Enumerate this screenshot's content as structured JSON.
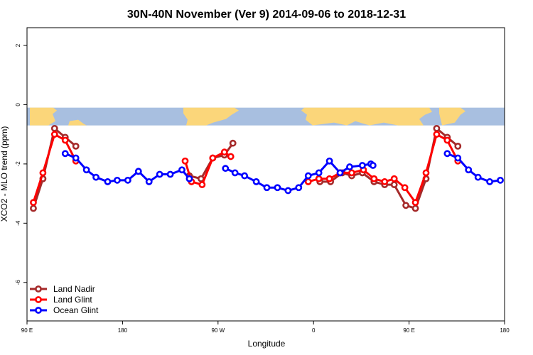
{
  "chart_data": {
    "type": "line",
    "title": "30N-40N November (Ver 9)   2014-09-06 to 2018-12-31",
    "xlabel": "Longitude",
    "ylabel": "XCO2 - MLO trend (ppm)",
    "xlim": [
      90,
      540
    ],
    "ylim": [
      -7.3,
      2.6
    ],
    "x_ticks": [
      {
        "value": 90,
        "label": "90 E"
      },
      {
        "value": 180,
        "label": "180"
      },
      {
        "value": 270,
        "label": "90 W"
      },
      {
        "value": 360,
        "label": "0"
      },
      {
        "value": 450,
        "label": "90 E"
      },
      {
        "value": 540,
        "label": "180"
      }
    ],
    "y_ticks": [
      {
        "value": 2,
        "label": "2"
      },
      {
        "value": 0,
        "label": "0"
      },
      {
        "value": -2,
        "label": "-2"
      },
      {
        "value": -4,
        "label": "-4"
      },
      {
        "value": -6,
        "label": "-6"
      }
    ],
    "map_strip": {
      "y_top": -0.1,
      "y_bottom": -0.7,
      "ocean_color": "#a8bfe0",
      "land_color": "#fbd67a"
    },
    "legend_position": "bottom-left",
    "series": [
      {
        "name": "Land Nadir",
        "color": "#a52a2a",
        "segments": [
          [
            [
              96,
              -3.5
            ],
            [
              105,
              -2.5
            ],
            [
              116,
              -0.8
            ],
            [
              126,
              -1.1
            ],
            [
              136,
              -1.4
            ]
          ],
          [
            [
              243,
              -2.4
            ],
            [
              254,
              -2.5
            ],
            [
              265,
              -1.8
            ],
            [
              276,
              -1.7
            ],
            [
              284,
              -1.3
            ]
          ],
          [
            [
              366,
              -2.6
            ],
            [
              376,
              -2.6
            ],
            [
              387,
              -2.3
            ],
            [
              396,
              -2.4
            ],
            [
              406,
              -2.3
            ],
            [
              417,
              -2.6
            ],
            [
              427,
              -2.7
            ],
            [
              436,
              -2.7
            ],
            [
              447,
              -3.4
            ],
            [
              456,
              -3.5
            ],
            [
              466,
              -2.5
            ],
            [
              476,
              -0.8
            ],
            [
              486,
              -1.1
            ],
            [
              496,
              -1.4
            ]
          ]
        ]
      },
      {
        "name": "Land Glint",
        "color": "#ff0000",
        "segments": [
          [
            [
              96,
              -3.3
            ],
            [
              105,
              -2.3
            ],
            [
              116,
              -1.0
            ],
            [
              126,
              -1.2
            ],
            [
              136,
              -1.9
            ]
          ],
          [
            [
              239,
              -1.9
            ],
            [
              245,
              -2.6
            ],
            [
              255,
              -2.7
            ],
            [
              265,
              -1.8
            ],
            [
              276,
              -1.6
            ],
            [
              282,
              -1.75
            ]
          ],
          [
            [
              355,
              -2.6
            ],
            [
              365,
              -2.5
            ],
            [
              375,
              -2.5
            ],
            [
              385,
              -2.3
            ],
            [
              396,
              -2.3
            ],
            [
              407,
              -2.2
            ],
            [
              417,
              -2.5
            ],
            [
              427,
              -2.6
            ],
            [
              436,
              -2.5
            ],
            [
              446,
              -2.8
            ],
            [
              456,
              -3.3
            ],
            [
              466,
              -2.3
            ],
            [
              476,
              -1.0
            ],
            [
              486,
              -1.2
            ],
            [
              496,
              -1.9
            ]
          ]
        ]
      },
      {
        "name": "Ocean Glint",
        "color": "#0000ff",
        "segments": [
          [
            [
              126,
              -1.65
            ],
            [
              136,
              -1.8
            ],
            [
              146,
              -2.2
            ],
            [
              155,
              -2.45
            ],
            [
              166,
              -2.6
            ],
            [
              175,
              -2.55
            ],
            [
              185,
              -2.55
            ],
            [
              195,
              -2.25
            ],
            [
              205,
              -2.6
            ],
            [
              215,
              -2.35
            ],
            [
              225,
              -2.35
            ],
            [
              236,
              -2.2
            ],
            [
              243,
              -2.5
            ]
          ],
          [
            [
              277,
              -2.15
            ],
            [
              286,
              -2.3
            ],
            [
              295,
              -2.4
            ],
            [
              306,
              -2.6
            ],
            [
              316,
              -2.8
            ],
            [
              326,
              -2.8
            ],
            [
              336,
              -2.9
            ],
            [
              346,
              -2.8
            ],
            [
              355,
              -2.4
            ],
            [
              365,
              -2.3
            ],
            [
              375,
              -1.9
            ],
            [
              385,
              -2.3
            ],
            [
              394,
              -2.1
            ],
            [
              406,
              -2.05
            ],
            [
              414,
              -2.0
            ],
            [
              416,
              -2.05
            ]
          ],
          [
            [
              486,
              -1.65
            ],
            [
              496,
              -1.8
            ],
            [
              506,
              -2.2
            ],
            [
              515,
              -2.45
            ],
            [
              526,
              -2.6
            ],
            [
              536,
              -2.55
            ]
          ]
        ]
      }
    ]
  }
}
